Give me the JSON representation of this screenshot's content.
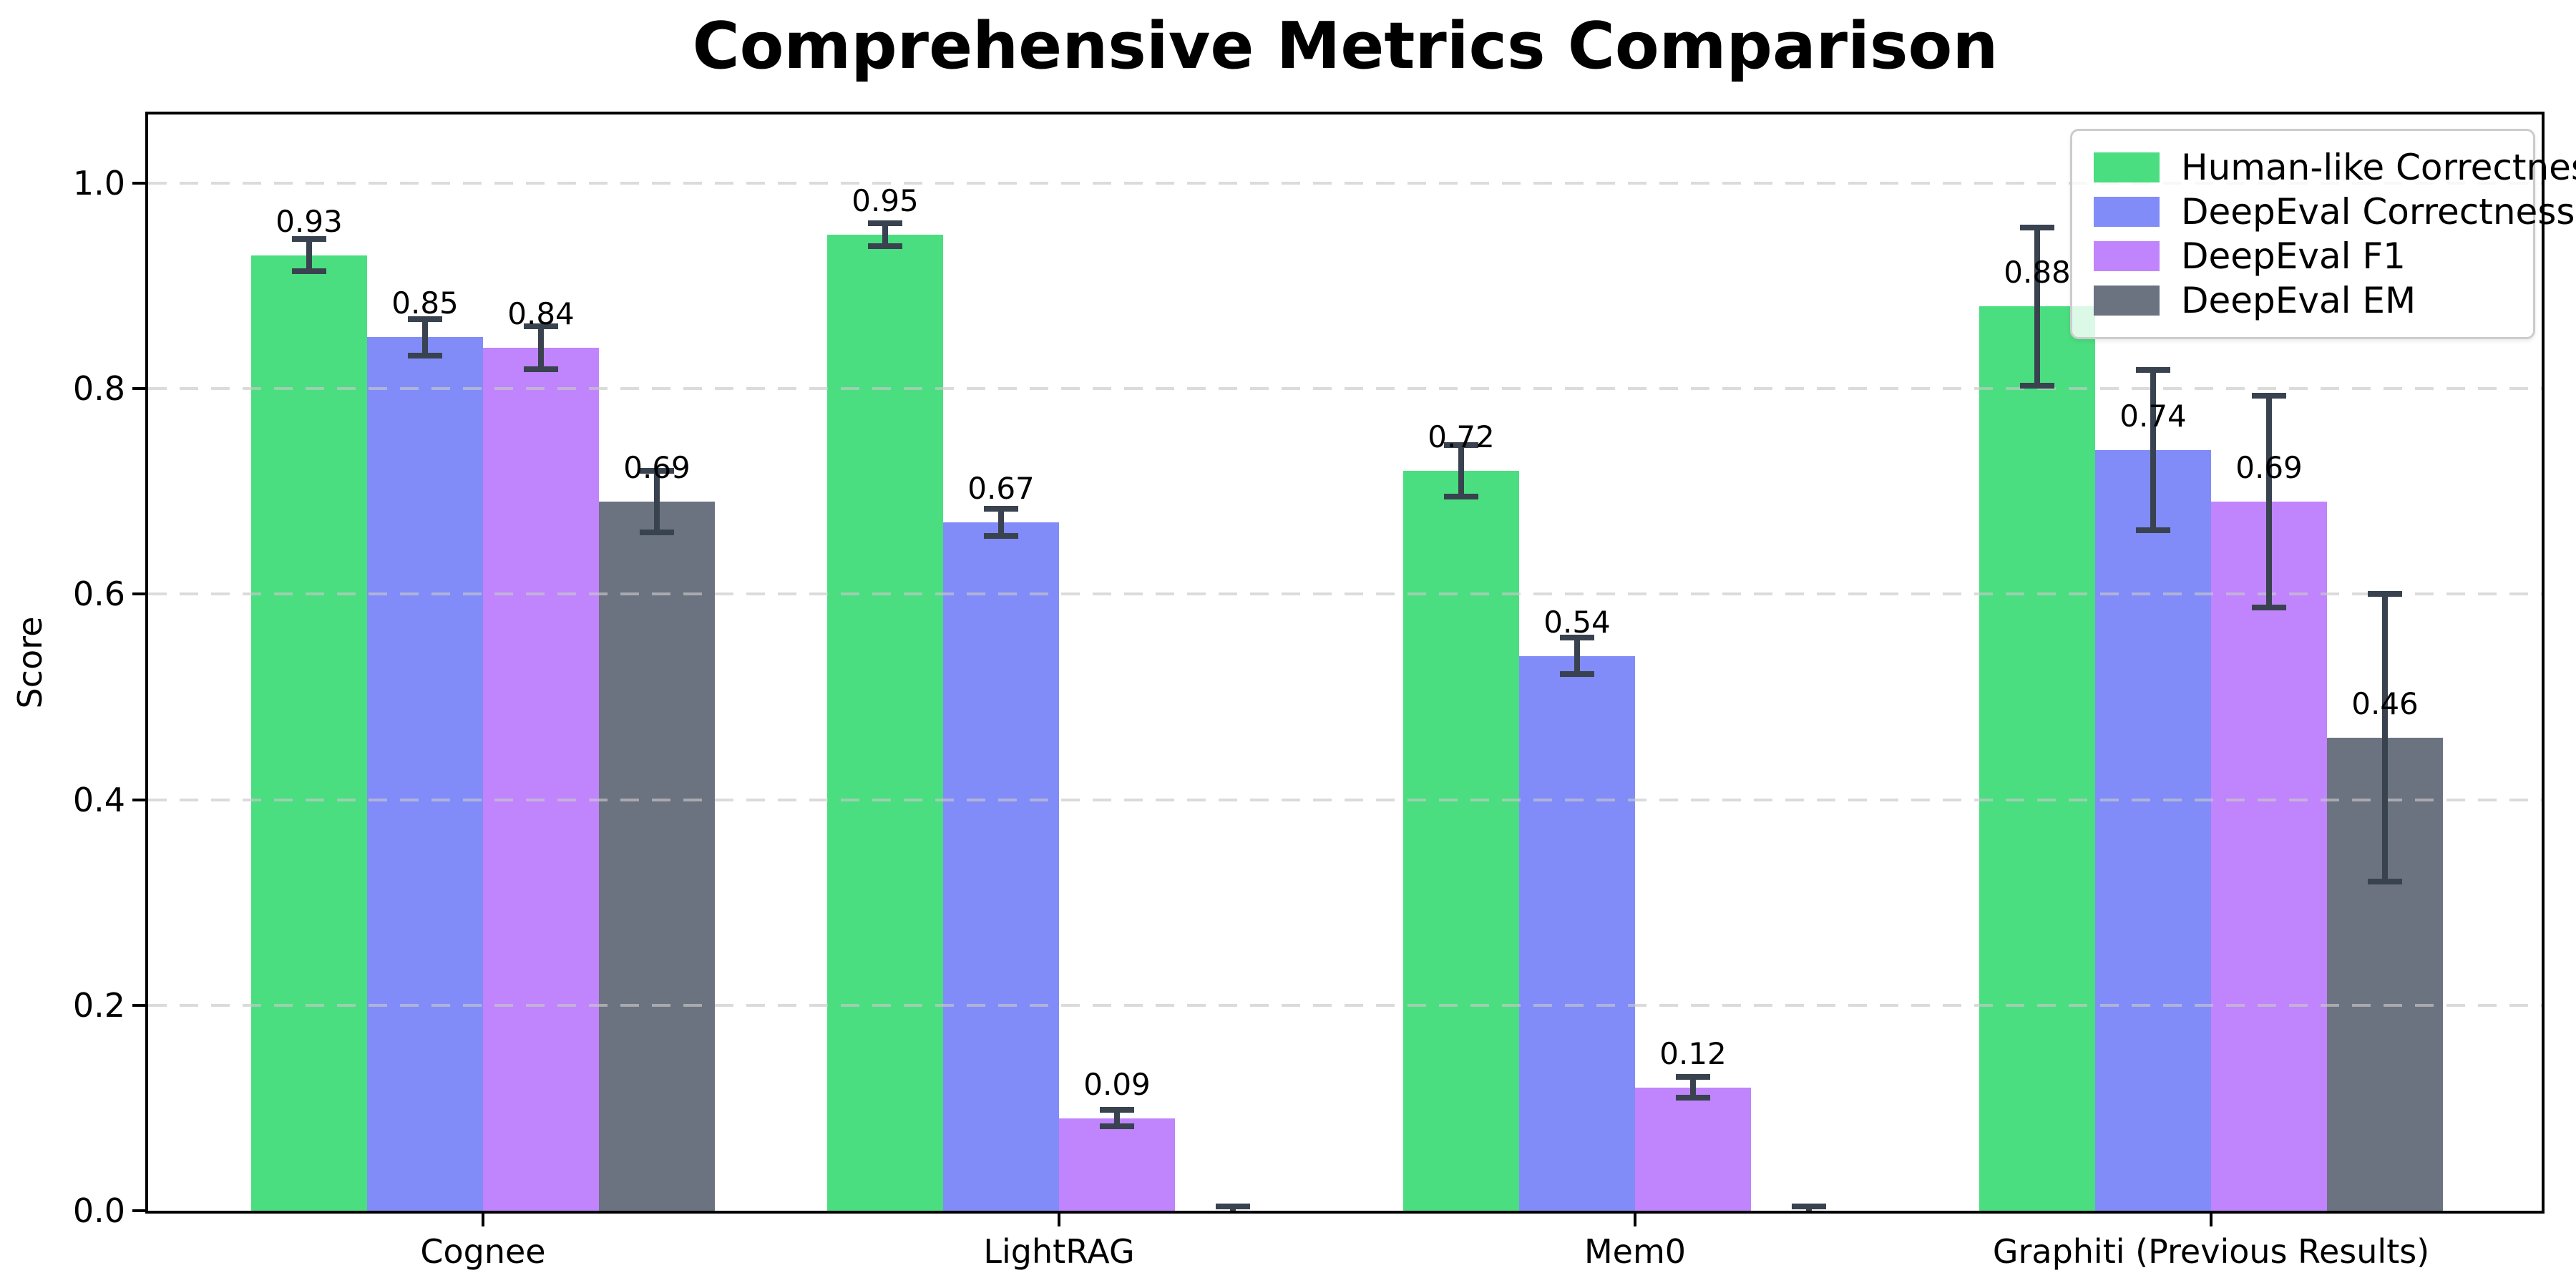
{
  "title": "Comprehensive Metrics Comparison",
  "chart_data": {
    "type": "bar",
    "title": "Comprehensive Metrics Comparison",
    "xlabel": "",
    "ylabel": "Score",
    "ylim": [
      0.0,
      1.07
    ],
    "grid": "horizontal-dashed",
    "grid_over_bars": true,
    "legend_position": "upper-right",
    "yticks": [
      {
        "value": 0.0,
        "label": "0.0"
      },
      {
        "value": 0.2,
        "label": "0.2"
      },
      {
        "value": 0.4,
        "label": "0.4"
      },
      {
        "value": 0.6,
        "label": "0.6"
      },
      {
        "value": 0.8,
        "label": "0.8"
      },
      {
        "value": 1.0,
        "label": "1.0"
      }
    ],
    "categories": [
      "Cognee",
      "LightRAG",
      "Mem0",
      "Graphiti (Previous Results)"
    ],
    "series": [
      {
        "name": "Human-like Correctness",
        "color": "#4ade80",
        "values": [
          0.93,
          0.95,
          0.72,
          0.88
        ],
        "errors": [
          0.016,
          0.011,
          0.025,
          0.077
        ],
        "labels": [
          "0.93",
          "0.95",
          "0.72",
          "0.88"
        ]
      },
      {
        "name": "DeepEval Correctness",
        "color": "#818cf8",
        "values": [
          0.85,
          0.67,
          0.54,
          0.74
        ],
        "errors": [
          0.018,
          0.013,
          0.018,
          0.078
        ],
        "labels": [
          "0.85",
          "0.67",
          "0.54",
          "0.74"
        ]
      },
      {
        "name": "DeepEval F1",
        "color": "#c084fc",
        "values": [
          0.84,
          0.09,
          0.12,
          0.69
        ],
        "errors": [
          0.021,
          0.008,
          0.01,
          0.103
        ],
        "labels": [
          "0.84",
          "0.09",
          "0.12",
          "0.69"
        ]
      },
      {
        "name": "DeepEval EM",
        "color": "#6b7280",
        "values": [
          0.69,
          0.0,
          0.0,
          0.46
        ],
        "errors": [
          0.03,
          0.004,
          0.004,
          0.14
        ],
        "labels": [
          "0.69",
          "",
          "",
          "0.46"
        ]
      }
    ],
    "error_bar_color": "#39424f"
  }
}
